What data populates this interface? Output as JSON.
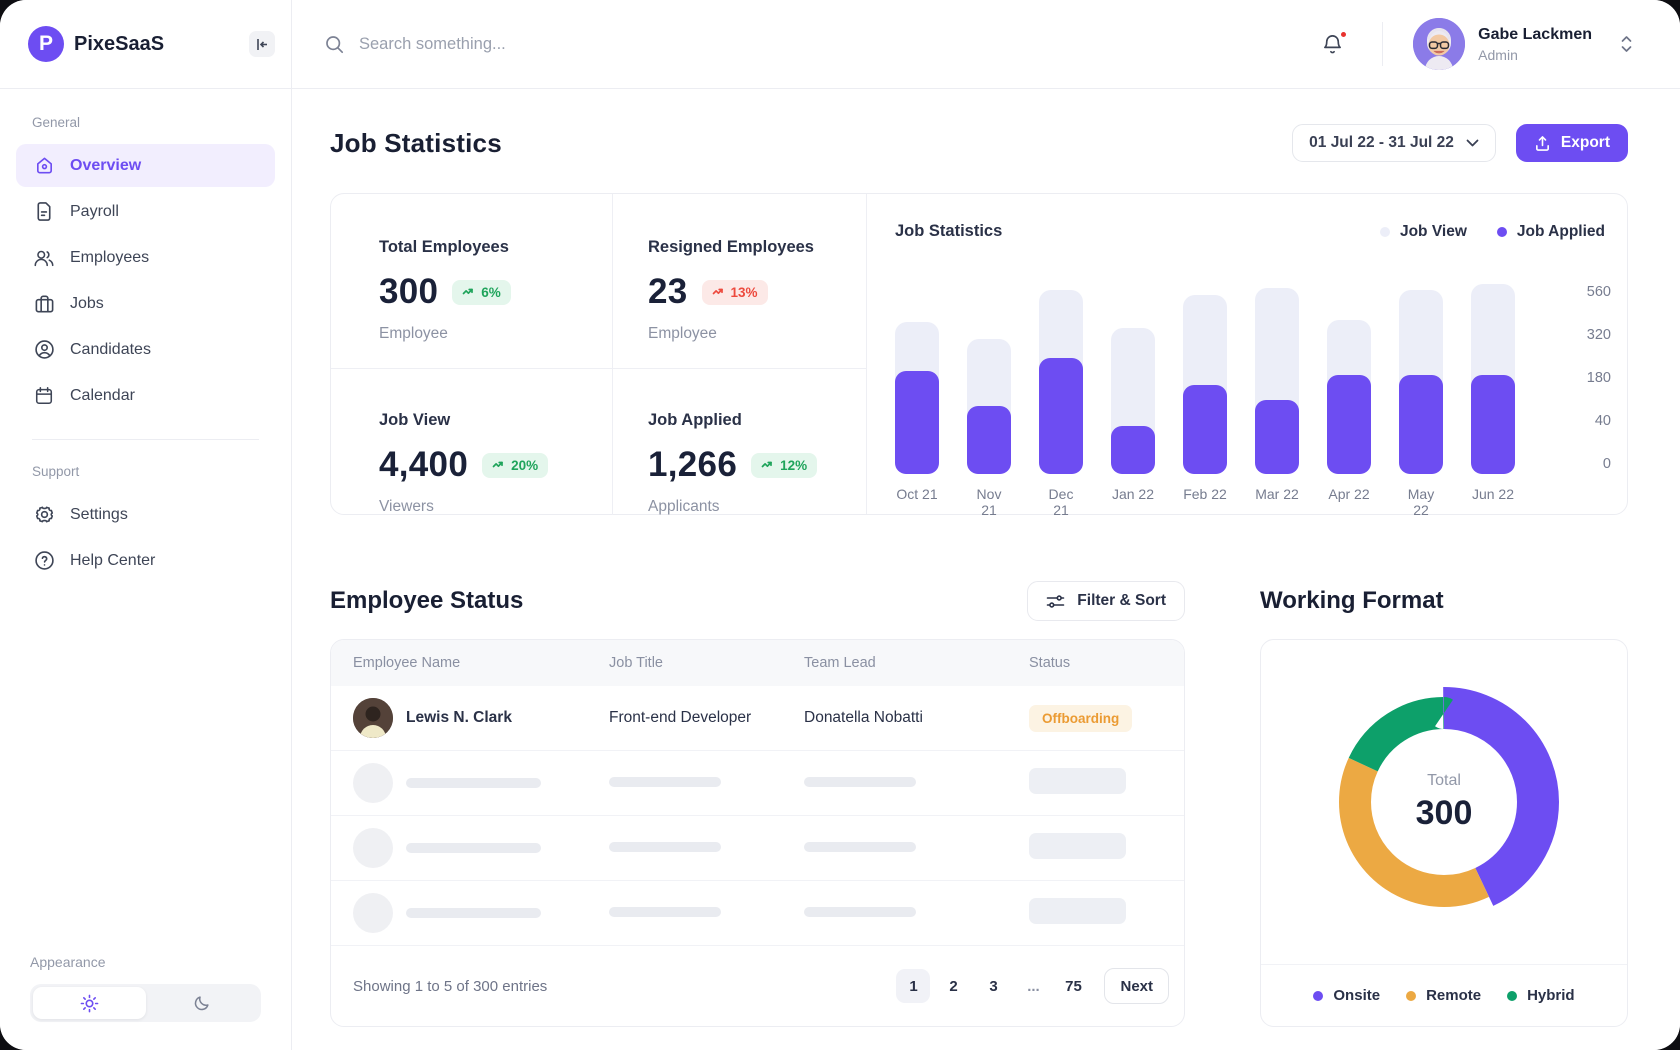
{
  "brand": {
    "name": "PixeSaaS"
  },
  "topbar": {
    "search_placeholder": "Search something...",
    "user": {
      "name": "Gabe Lackmen",
      "role": "Admin"
    }
  },
  "sidebar": {
    "sections": [
      {
        "label": "General",
        "items": [
          {
            "label": "Overview",
            "icon": "home",
            "active": true
          },
          {
            "label": "Payroll",
            "icon": "document",
            "active": false
          },
          {
            "label": "Employees",
            "icon": "users",
            "active": false
          },
          {
            "label": "Jobs",
            "icon": "briefcase",
            "active": false
          },
          {
            "label": "Candidates",
            "icon": "user-circle",
            "active": false
          },
          {
            "label": "Calendar",
            "icon": "calendar",
            "active": false
          }
        ]
      },
      {
        "label": "Support",
        "items": [
          {
            "label": "Settings",
            "icon": "gear",
            "active": false
          },
          {
            "label": "Help Center",
            "icon": "help",
            "active": false
          }
        ]
      }
    ],
    "appearance_label": "Appearance"
  },
  "page": {
    "title": "Job Statistics",
    "date_range": "01 Jul 22 - 31 Jul 22",
    "export_label": "Export"
  },
  "stats": [
    {
      "label": "Total Employees",
      "value": "300",
      "delta": "6%",
      "trend": "up",
      "sub": "Employee"
    },
    {
      "label": "Resigned Employees",
      "value": "23",
      "delta": "13%",
      "trend": "down",
      "sub": "Employee"
    },
    {
      "label": "Job View",
      "value": "4,400",
      "delta": "20%",
      "trend": "up",
      "sub": "Viewers"
    },
    {
      "label": "Job Applied",
      "value": "1,266",
      "delta": "12%",
      "trend": "up",
      "sub": "Applicants"
    }
  ],
  "chart_data": [
    {
      "type": "bar",
      "title": "Job Statistics",
      "categories": [
        "Oct 21",
        "Nov 21",
        "Dec 21",
        "Jan 22",
        "Feb 22",
        "Mar 22",
        "Apr 22",
        "May 22",
        "Jun 22"
      ],
      "series": [
        {
          "name": "Job View",
          "color": "#ECEEF8",
          "values": [
            360,
            290,
            530,
            320,
            495,
            545,
            360,
            535,
            560
          ],
          "heights_pct": [
            80,
            71,
            97,
            77,
            94,
            98,
            81,
            97,
            100
          ]
        },
        {
          "name": "Job Applied",
          "color": "#6D4DF2",
          "values": [
            185,
            85,
            230,
            35,
            150,
            105,
            175,
            175,
            175
          ],
          "heights_pct": [
            54,
            36,
            61,
            25,
            47,
            39,
            52,
            52,
            52
          ]
        }
      ],
      "y_ticks": [
        "560",
        "320",
        "180",
        "40",
        "0"
      ],
      "ylim": [
        0,
        560
      ],
      "grid": false,
      "legend_position": "top-right"
    },
    {
      "type": "pie",
      "title": "Working Format",
      "labels": [
        "Onsite",
        "Remote",
        "Hybrid"
      ],
      "values": [
        129,
        117,
        54
      ],
      "percents": [
        43,
        39,
        18
      ],
      "colors": [
        "#6D4DF2",
        "#ECA943",
        "#0DA06A"
      ],
      "center": {
        "label": "Total",
        "value": "300"
      },
      "legend_position": "bottom"
    }
  ],
  "employee_status": {
    "title": "Employee Status",
    "filter_label": "Filter & Sort",
    "columns": [
      "Employee Name",
      "Job Title",
      "Team Lead",
      "Status"
    ],
    "rows": [
      {
        "name": "Lewis N. Clark",
        "job": "Front-end Developer",
        "lead": "Donatella Nobatti",
        "status": "Offboarding"
      }
    ],
    "skeleton_rows": 3,
    "footer": {
      "summary": "Showing 1 to 5 of 300 entries",
      "pages": [
        "1",
        "2",
        "3",
        "...",
        "75"
      ],
      "active_page": "1",
      "next_label": "Next"
    }
  },
  "working_format": {
    "title": "Working Format"
  },
  "colors": {
    "accent": "#6D4DF2",
    "bar_track": "#ECEEF8",
    "green": "#0DA06A",
    "orange": "#ECA943",
    "badge_up_bg": "#E4F6EC",
    "badge_up_text": "#1FA45B",
    "badge_down_bg": "#FCE9E7",
    "badge_down_text": "#ED4A3E",
    "offboarding_bg": "#FCF3E3",
    "offboarding_text": "#EB9B33"
  }
}
